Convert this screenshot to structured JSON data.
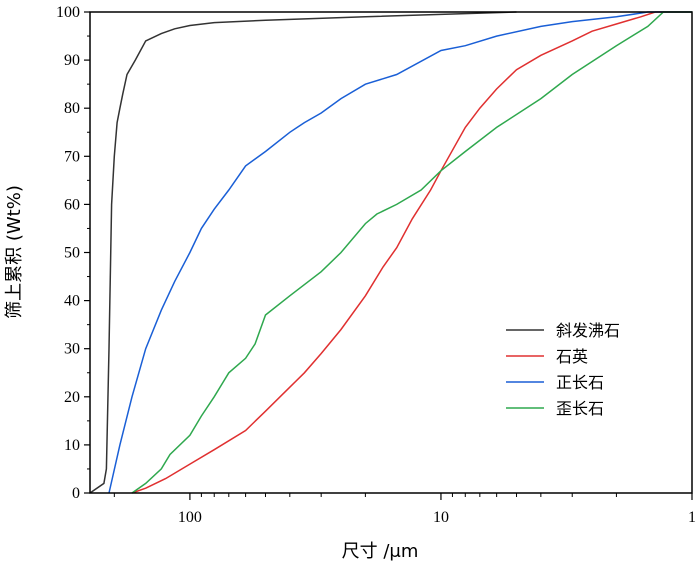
{
  "chart_data": {
    "type": "line",
    "title": "",
    "xlabel": "尺寸 /μm",
    "ylabel": "筛上累积 (Wt%)",
    "x_scale": "log",
    "x_reversed": true,
    "xlim": [
      250,
      1
    ],
    "ylim": [
      0,
      100
    ],
    "x_ticks": [
      100,
      10,
      1
    ],
    "x_tick_labels": [
      "100",
      "10",
      "1"
    ],
    "y_ticks": [
      0,
      10,
      20,
      30,
      40,
      50,
      60,
      70,
      80,
      90,
      100
    ],
    "y_tick_labels": [
      "0",
      "10",
      "20",
      "30",
      "40",
      "50",
      "60",
      "70",
      "80",
      "90",
      "100"
    ],
    "grid": false,
    "legend_position": "bottom-right",
    "series": [
      {
        "name": "斜发沸石",
        "color": "#333333",
        "points": [
          [
            250,
            0
          ],
          [
            220,
            2
          ],
          [
            215,
            5
          ],
          [
            210,
            30
          ],
          [
            205,
            60
          ],
          [
            200,
            70
          ],
          [
            195,
            77
          ],
          [
            190,
            80
          ],
          [
            185,
            83
          ],
          [
            178,
            87
          ],
          [
            165,
            90
          ],
          [
            150,
            94
          ],
          [
            130,
            95.5
          ],
          [
            115,
            96.5
          ],
          [
            100,
            97.2
          ],
          [
            80,
            97.8
          ],
          [
            50,
            98.3
          ],
          [
            20,
            99
          ],
          [
            10,
            99.5
          ],
          [
            5,
            100
          ]
        ]
      },
      {
        "name": "石英",
        "color": "#e03030",
        "points": [
          [
            170,
            0
          ],
          [
            150,
            1
          ],
          [
            125,
            3
          ],
          [
            100,
            6
          ],
          [
            80,
            9
          ],
          [
            60,
            13
          ],
          [
            50,
            17
          ],
          [
            40,
            22
          ],
          [
            35,
            25
          ],
          [
            30,
            29
          ],
          [
            25,
            34
          ],
          [
            20,
            41
          ],
          [
            17,
            47
          ],
          [
            15,
            51
          ],
          [
            13,
            57
          ],
          [
            11,
            63
          ],
          [
            10,
            67
          ],
          [
            8,
            76
          ],
          [
            7,
            80
          ],
          [
            6,
            84
          ],
          [
            5,
            88
          ],
          [
            4,
            91
          ],
          [
            3,
            94
          ],
          [
            2.5,
            96
          ],
          [
            2,
            97.5
          ],
          [
            1.6,
            99
          ],
          [
            1.4,
            100
          ],
          [
            1,
            100
          ]
        ]
      },
      {
        "name": "正长石",
        "color": "#1a5fd6",
        "points": [
          [
            210,
            0
          ],
          [
            190,
            10
          ],
          [
            170,
            20
          ],
          [
            150,
            30
          ],
          [
            130,
            38
          ],
          [
            115,
            44
          ],
          [
            100,
            50
          ],
          [
            90,
            55
          ],
          [
            80,
            59
          ],
          [
            70,
            63
          ],
          [
            60,
            68
          ],
          [
            50,
            71
          ],
          [
            40,
            75
          ],
          [
            35,
            77
          ],
          [
            30,
            79
          ],
          [
            25,
            82
          ],
          [
            20,
            85
          ],
          [
            15,
            87
          ],
          [
            10,
            92
          ],
          [
            8,
            93
          ],
          [
            6,
            95
          ],
          [
            4,
            97
          ],
          [
            3,
            98
          ],
          [
            2,
            99
          ],
          [
            1.5,
            100
          ],
          [
            1,
            100
          ]
        ]
      },
      {
        "name": "歪长石",
        "color": "#2fa84e",
        "points": [
          [
            170,
            0
          ],
          [
            150,
            2
          ],
          [
            130,
            5
          ],
          [
            120,
            8
          ],
          [
            100,
            12
          ],
          [
            90,
            16
          ],
          [
            80,
            20
          ],
          [
            70,
            25
          ],
          [
            60,
            28
          ],
          [
            55,
            31
          ],
          [
            50,
            37
          ],
          [
            40,
            41
          ],
          [
            30,
            46
          ],
          [
            25,
            50
          ],
          [
            20,
            56
          ],
          [
            18,
            58
          ],
          [
            15,
            60
          ],
          [
            12,
            63
          ],
          [
            10,
            67
          ],
          [
            8,
            71
          ],
          [
            6,
            76
          ],
          [
            4,
            82
          ],
          [
            3,
            87
          ],
          [
            2,
            93
          ],
          [
            1.5,
            97
          ],
          [
            1.3,
            100
          ],
          [
            1,
            100
          ]
        ]
      }
    ]
  }
}
